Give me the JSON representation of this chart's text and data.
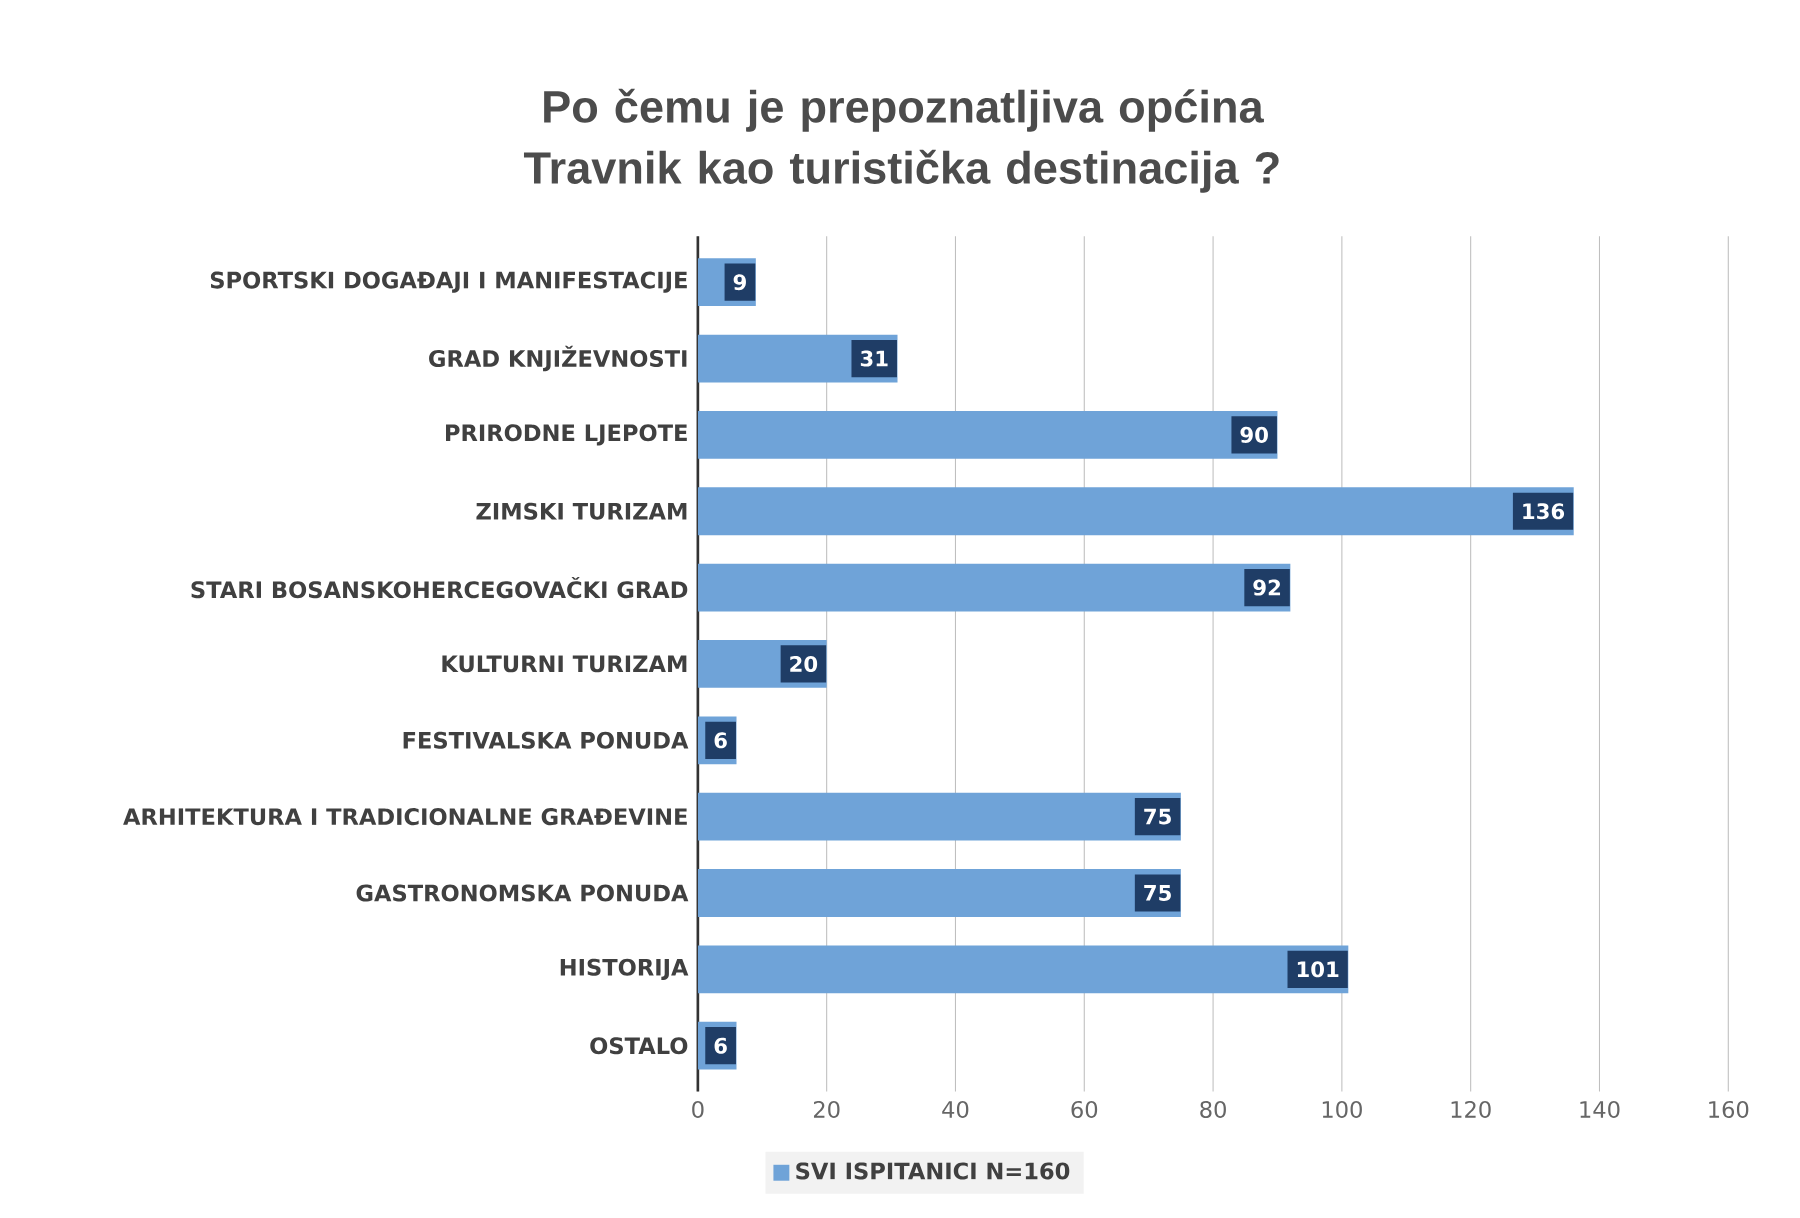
{
  "chart_data": {
    "type": "bar",
    "orientation": "horizontal",
    "title": "Po čemu je prepoznatljiva općina Travnik kao turistička destinacija ?",
    "categories": [
      "SPORTSKI DOGAĐAJI I MANIFESTACIJE",
      "GRAD KNJIŽEVNOSTI",
      "PRIRODNE LJEPOTE",
      "ZIMSKI TURIZAM",
      "STARI BOSANSKOHERCEGOVAČKI GRAD",
      "KULTURNI TURIZAM",
      "FESTIVALSKA PONUDA",
      "ARHITEKTURA I TRADICIONALNE GRAĐEVINE",
      "GASTRONOMSKA PONUDA",
      "HISTORIJA",
      "OSTALO"
    ],
    "series": [
      {
        "name": "SVI ISPITANICI N=160",
        "color": "#6fa3d8",
        "values": [
          9,
          31,
          90,
          136,
          92,
          20,
          6,
          75,
          75,
          101,
          6
        ]
      }
    ],
    "xlim": [
      0,
      160
    ],
    "xticks": [
      0,
      20,
      40,
      60,
      80,
      100,
      120,
      140,
      160
    ],
    "grid": "x",
    "legend": "bottom",
    "data_labels": true
  }
}
